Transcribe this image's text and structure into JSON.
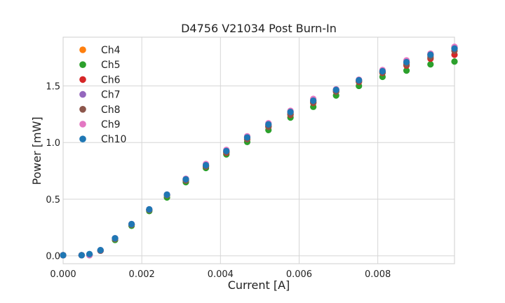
{
  "chart_data": {
    "type": "scatter",
    "title": "D4756 V21034 Post Burn-In",
    "xlabel": "Current [A]",
    "ylabel": "Power [mW]",
    "xlim": [
      0,
      0.00995
    ],
    "ylim": [
      -0.07,
      1.93
    ],
    "xticks": [
      0,
      0.002,
      0.004,
      0.006,
      0.008
    ],
    "xtick_labels": [
      "0.000",
      "0.002",
      "0.004",
      "0.006",
      "0.008"
    ],
    "yticks": [
      0,
      0.5,
      1.0,
      1.5
    ],
    "ytick_labels": [
      "0.0",
      "0.5",
      "1.0",
      "1.5"
    ],
    "grid": true,
    "legend_position": "top-left",
    "x": [
      0,
      0.00047,
      0.00067,
      0.00095,
      0.00132,
      0.00174,
      0.00219,
      0.00264,
      0.00312,
      0.00363,
      0.00415,
      0.00468,
      0.00522,
      0.00578,
      0.00636,
      0.00694,
      0.00752,
      0.00812,
      0.00873,
      0.00934,
      0.00995
    ],
    "series": [
      {
        "name": "Ch4",
        "color": "#ff7f0e",
        "values": [
          0.005,
          0.005,
          0.01,
          0.045,
          0.15,
          0.275,
          0.405,
          0.535,
          0.67,
          0.795,
          0.92,
          1.04,
          1.15,
          1.26,
          1.365,
          1.46,
          1.55,
          1.63,
          1.71,
          1.78,
          1.84
        ]
      },
      {
        "name": "Ch5",
        "color": "#2ca02c",
        "values": [
          0.005,
          0.005,
          0.005,
          0.045,
          0.14,
          0.265,
          0.395,
          0.515,
          0.65,
          0.775,
          0.895,
          1.005,
          1.11,
          1.22,
          1.315,
          1.415,
          1.5,
          1.58,
          1.635,
          1.69,
          1.715
        ]
      },
      {
        "name": "Ch6",
        "color": "#d62728",
        "values": [
          0.005,
          0.005,
          0.01,
          0.045,
          0.15,
          0.275,
          0.405,
          0.535,
          0.665,
          0.79,
          0.91,
          1.03,
          1.14,
          1.245,
          1.35,
          1.45,
          1.535,
          1.615,
          1.68,
          1.74,
          1.775
        ]
      },
      {
        "name": "Ch7",
        "color": "#9467bd",
        "values": [
          0.005,
          0.005,
          0.01,
          0.045,
          0.155,
          0.28,
          0.41,
          0.54,
          0.675,
          0.8,
          0.925,
          1.045,
          1.155,
          1.265,
          1.37,
          1.46,
          1.55,
          1.63,
          1.705,
          1.77,
          1.83
        ]
      },
      {
        "name": "Ch8",
        "color": "#8c564b",
        "values": [
          0.005,
          0.005,
          0.01,
          0.045,
          0.15,
          0.275,
          0.405,
          0.535,
          0.665,
          0.79,
          0.915,
          1.03,
          1.14,
          1.25,
          1.355,
          1.45,
          1.54,
          1.62,
          1.69,
          1.755,
          1.81
        ]
      },
      {
        "name": "Ch9",
        "color": "#e377c2",
        "values": [
          0.005,
          0.005,
          0.005,
          0.05,
          0.155,
          0.28,
          0.41,
          0.54,
          0.68,
          0.81,
          0.935,
          1.055,
          1.17,
          1.28,
          1.385,
          1.47,
          1.555,
          1.64,
          1.725,
          1.785,
          1.845
        ]
      },
      {
        "name": "Ch10",
        "color": "#1f77b4",
        "values": [
          0.005,
          0.005,
          0.015,
          0.05,
          0.155,
          0.28,
          0.41,
          0.54,
          0.675,
          0.8,
          0.925,
          1.045,
          1.16,
          1.27,
          1.37,
          1.465,
          1.55,
          1.63,
          1.71,
          1.775,
          1.83
        ]
      }
    ]
  }
}
